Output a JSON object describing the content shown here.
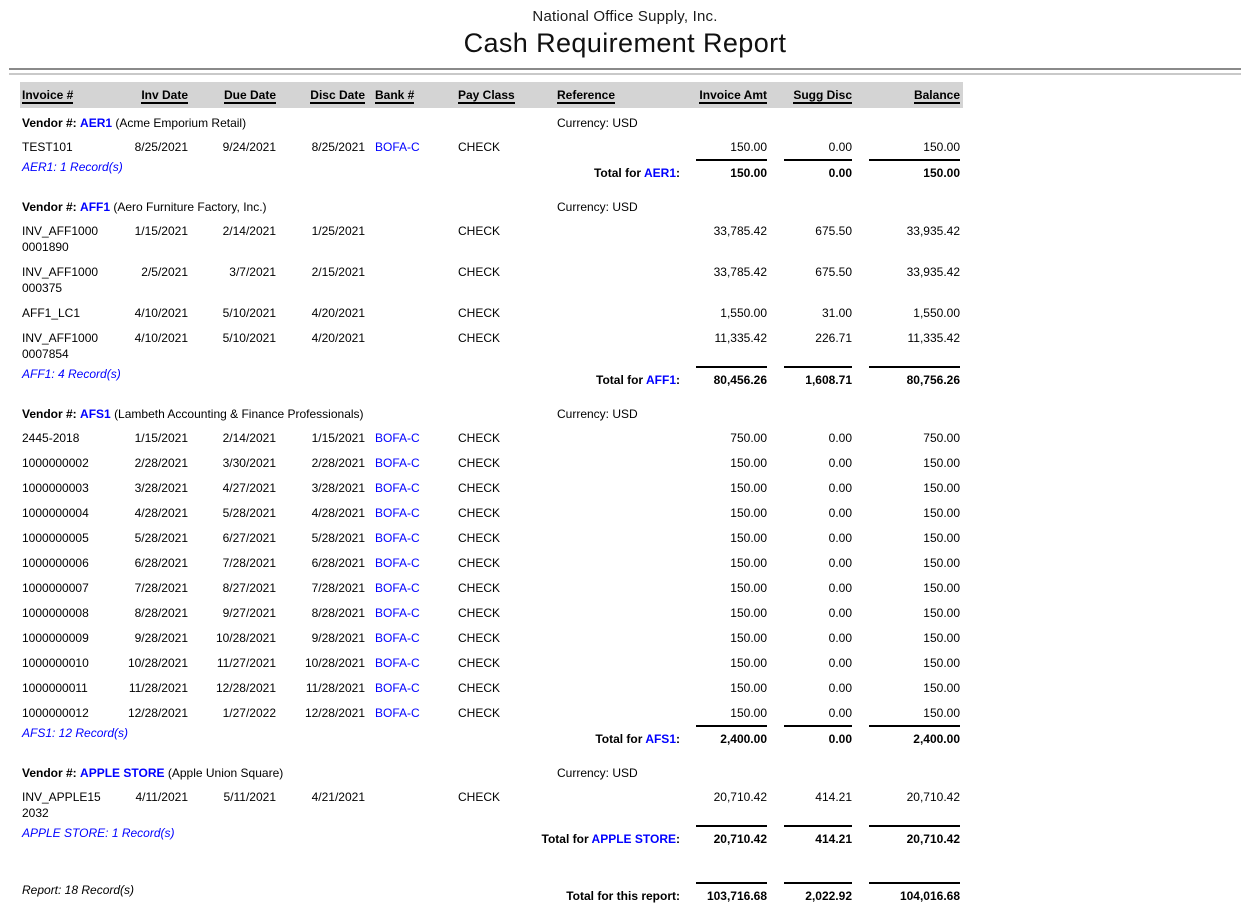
{
  "report": {
    "company": "National Office Supply, Inc.",
    "title": "Cash Requirement Report",
    "columns": [
      "Invoice #",
      "Inv Date",
      "Due Date",
      "Disc Date",
      "Bank #",
      "Pay Class",
      "Reference",
      "Invoice Amt",
      "Sugg Disc",
      "Balance"
    ],
    "colors": {
      "link_blue": "#0000ff",
      "header_bg": "#d4d4d4"
    },
    "vendors": [
      {
        "vendor_prefix": "Vendor #:",
        "code": "AER1",
        "name": "(Acme Emporium Retail)",
        "currency": "Currency: USD",
        "rows": [
          {
            "invoice": "TEST101",
            "inv_date": "8/25/2021",
            "due_date": "9/24/2021",
            "disc_date": "8/25/2021",
            "bank": "BOFA-C",
            "pay_class": "CHECK",
            "reference": "",
            "invoice_amt": "150.00",
            "sugg_disc": "0.00",
            "balance": "150.00"
          }
        ],
        "record_note": "AER1: 1 Record(s)",
        "total": {
          "pre": "Total for",
          "code": "AER1",
          "post": ":",
          "invoice_amt": "150.00",
          "sugg_disc": "0.00",
          "balance": "150.00"
        }
      },
      {
        "vendor_prefix": "Vendor #:",
        "code": "AFF1",
        "name": "(Aero Furniture Factory, Inc.)",
        "currency": "Currency: USD",
        "rows": [
          {
            "invoice": "INV_AFF10000001890",
            "inv_date": "1/15/2021",
            "due_date": "2/14/2021",
            "disc_date": "1/25/2021",
            "bank": "",
            "pay_class": "CHECK",
            "reference": "",
            "invoice_amt": "33,785.42",
            "sugg_disc": "675.50",
            "balance": "33,935.42"
          },
          {
            "invoice": "INV_AFF1000000375",
            "inv_date": "2/5/2021",
            "due_date": "3/7/2021",
            "disc_date": "2/15/2021",
            "bank": "",
            "pay_class": "CHECK",
            "reference": "",
            "invoice_amt": "33,785.42",
            "sugg_disc": "675.50",
            "balance": "33,935.42"
          },
          {
            "invoice": "AFF1_LC1",
            "inv_date": "4/10/2021",
            "due_date": "5/10/2021",
            "disc_date": "4/20/2021",
            "bank": "",
            "pay_class": "CHECK",
            "reference": "",
            "invoice_amt": "1,550.00",
            "sugg_disc": "31.00",
            "balance": "1,550.00"
          },
          {
            "invoice": "INV_AFF10000007854",
            "inv_date": "4/10/2021",
            "due_date": "5/10/2021",
            "disc_date": "4/20/2021",
            "bank": "",
            "pay_class": "CHECK",
            "reference": "",
            "invoice_amt": "11,335.42",
            "sugg_disc": "226.71",
            "balance": "11,335.42"
          }
        ],
        "record_note": "AFF1: 4 Record(s)",
        "total": {
          "pre": "Total for",
          "code": "AFF1",
          "post": ":",
          "invoice_amt": "80,456.26",
          "sugg_disc": "1,608.71",
          "balance": "80,756.26"
        }
      },
      {
        "vendor_prefix": "Vendor #:",
        "code": "AFS1",
        "name": "(Lambeth Accounting & Finance Professionals)",
        "currency": "Currency: USD",
        "rows": [
          {
            "invoice": "2445-2018",
            "inv_date": "1/15/2021",
            "due_date": "2/14/2021",
            "disc_date": "1/15/2021",
            "bank": "BOFA-C",
            "pay_class": "CHECK",
            "reference": "",
            "invoice_amt": "750.00",
            "sugg_disc": "0.00",
            "balance": "750.00"
          },
          {
            "invoice": "1000000002",
            "inv_date": "2/28/2021",
            "due_date": "3/30/2021",
            "disc_date": "2/28/2021",
            "bank": "BOFA-C",
            "pay_class": "CHECK",
            "reference": "",
            "invoice_amt": "150.00",
            "sugg_disc": "0.00",
            "balance": "150.00"
          },
          {
            "invoice": "1000000003",
            "inv_date": "3/28/2021",
            "due_date": "4/27/2021",
            "disc_date": "3/28/2021",
            "bank": "BOFA-C",
            "pay_class": "CHECK",
            "reference": "",
            "invoice_amt": "150.00",
            "sugg_disc": "0.00",
            "balance": "150.00"
          },
          {
            "invoice": "1000000004",
            "inv_date": "4/28/2021",
            "due_date": "5/28/2021",
            "disc_date": "4/28/2021",
            "bank": "BOFA-C",
            "pay_class": "CHECK",
            "reference": "",
            "invoice_amt": "150.00",
            "sugg_disc": "0.00",
            "balance": "150.00"
          },
          {
            "invoice": "1000000005",
            "inv_date": "5/28/2021",
            "due_date": "6/27/2021",
            "disc_date": "5/28/2021",
            "bank": "BOFA-C",
            "pay_class": "CHECK",
            "reference": "",
            "invoice_amt": "150.00",
            "sugg_disc": "0.00",
            "balance": "150.00"
          },
          {
            "invoice": "1000000006",
            "inv_date": "6/28/2021",
            "due_date": "7/28/2021",
            "disc_date": "6/28/2021",
            "bank": "BOFA-C",
            "pay_class": "CHECK",
            "reference": "",
            "invoice_amt": "150.00",
            "sugg_disc": "0.00",
            "balance": "150.00"
          },
          {
            "invoice": "1000000007",
            "inv_date": "7/28/2021",
            "due_date": "8/27/2021",
            "disc_date": "7/28/2021",
            "bank": "BOFA-C",
            "pay_class": "CHECK",
            "reference": "",
            "invoice_amt": "150.00",
            "sugg_disc": "0.00",
            "balance": "150.00"
          },
          {
            "invoice": "1000000008",
            "inv_date": "8/28/2021",
            "due_date": "9/27/2021",
            "disc_date": "8/28/2021",
            "bank": "BOFA-C",
            "pay_class": "CHECK",
            "reference": "",
            "invoice_amt": "150.00",
            "sugg_disc": "0.00",
            "balance": "150.00"
          },
          {
            "invoice": "1000000009",
            "inv_date": "9/28/2021",
            "due_date": "10/28/2021",
            "disc_date": "9/28/2021",
            "bank": "BOFA-C",
            "pay_class": "CHECK",
            "reference": "",
            "invoice_amt": "150.00",
            "sugg_disc": "0.00",
            "balance": "150.00"
          },
          {
            "invoice": "1000000010",
            "inv_date": "10/28/2021",
            "due_date": "11/27/2021",
            "disc_date": "10/28/2021",
            "bank": "BOFA-C",
            "pay_class": "CHECK",
            "reference": "",
            "invoice_amt": "150.00",
            "sugg_disc": "0.00",
            "balance": "150.00"
          },
          {
            "invoice": "1000000011",
            "inv_date": "11/28/2021",
            "due_date": "12/28/2021",
            "disc_date": "11/28/2021",
            "bank": "BOFA-C",
            "pay_class": "CHECK",
            "reference": "",
            "invoice_amt": "150.00",
            "sugg_disc": "0.00",
            "balance": "150.00"
          },
          {
            "invoice": "1000000012",
            "inv_date": "12/28/2021",
            "due_date": "1/27/2022",
            "disc_date": "12/28/2021",
            "bank": "BOFA-C",
            "pay_class": "CHECK",
            "reference": "",
            "invoice_amt": "150.00",
            "sugg_disc": "0.00",
            "balance": "150.00"
          }
        ],
        "record_note": "AFS1: 12 Record(s)",
        "total": {
          "pre": "Total for",
          "code": "AFS1",
          "post": ":",
          "invoice_amt": "2,400.00",
          "sugg_disc": "0.00",
          "balance": "2,400.00"
        }
      },
      {
        "vendor_prefix": "Vendor #:",
        "code": "APPLE STORE",
        "name": "(Apple Union Square)",
        "currency": "Currency: USD",
        "rows": [
          {
            "invoice": "INV_APPLE152032",
            "inv_date": "4/11/2021",
            "due_date": "5/11/2021",
            "disc_date": "4/21/2021",
            "bank": "",
            "pay_class": "CHECK",
            "reference": "",
            "invoice_amt": "20,710.42",
            "sugg_disc": "414.21",
            "balance": "20,710.42"
          }
        ],
        "record_note": "APPLE STORE: 1 Record(s)",
        "total": {
          "pre": "Total for",
          "code": "APPLE STORE",
          "post": ":",
          "invoice_amt": "20,710.42",
          "sugg_disc": "414.21",
          "balance": "20,710.42"
        }
      }
    ],
    "footer": {
      "report_note": "Report: 18 Record(s)",
      "grand_total_label": "Total for this report:",
      "grand_totals": {
        "invoice_amt": "103,716.68",
        "sugg_disc": "2,022.92",
        "balance": "104,016.68"
      }
    }
  }
}
